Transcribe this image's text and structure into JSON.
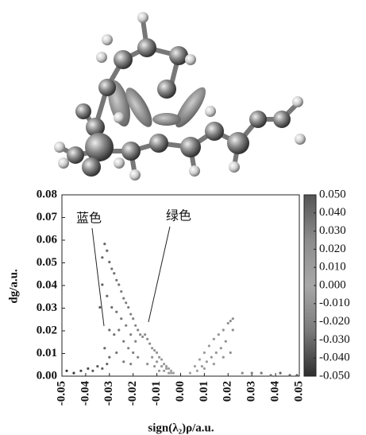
{
  "chart_data": {
    "type": "scatter",
    "xlabel": "sign(λ₂)ρ/a.u.",
    "ylabel": "dg/a.u.",
    "xlim": [
      -0.05,
      0.05
    ],
    "ylim": [
      0,
      0.08
    ],
    "xticks": [
      -0.05,
      -0.04,
      -0.03,
      -0.02,
      -0.01,
      {
        "value": 0,
        "label": "0.00"
      },
      0.01,
      0.02,
      0.03,
      0.04,
      0.05
    ],
    "yticks": [
      {
        "value": 0,
        "label": "0.00"
      },
      0.01,
      0.02,
      0.03,
      0.04,
      0.05,
      0.06,
      0.07,
      0.08
    ],
    "clim": [
      -0.05,
      0.05
    ],
    "cticks": [
      {
        "value": 0.05,
        "label": "0.050"
      },
      {
        "value": 0.04,
        "label": "0.040"
      },
      {
        "value": 0.03,
        "label": "0.030"
      },
      {
        "value": 0.02,
        "label": "0.020"
      },
      {
        "value": 0.01,
        "label": "0.010"
      },
      {
        "value": 0,
        "label": "0.000"
      },
      {
        "value": -0.01,
        "label": "-0.010"
      },
      {
        "value": -0.02,
        "label": "-0.020"
      },
      {
        "value": -0.03,
        "label": "-0.030"
      },
      {
        "value": -0.04,
        "label": "-0.040"
      },
      {
        "value": -0.05,
        "label": "-0.050"
      }
    ],
    "colormap": [
      "#2e2e2e",
      "#7a7a7a",
      "#a8a8a8",
      "#8c8c8c",
      "#555555"
    ],
    "annotations": [
      {
        "text": "蓝色"
      },
      {
        "text": "绿色"
      }
    ],
    "x": [
      -0.048,
      -0.045,
      -0.042,
      -0.039,
      -0.037,
      -0.035,
      -0.033,
      -0.031,
      0.026,
      0.03,
      0.034,
      0.038,
      0.042,
      0.046,
      0.049,
      -0.033,
      -0.032,
      -0.031,
      -0.03,
      -0.029,
      -0.028,
      -0.027,
      -0.026,
      -0.025,
      -0.024,
      -0.023,
      -0.022,
      -0.021,
      -0.02,
      -0.019,
      -0.018,
      -0.017,
      -0.016,
      -0.034,
      -0.033,
      -0.031,
      -0.029,
      -0.027,
      -0.025,
      -0.023,
      -0.021,
      -0.019,
      -0.03,
      -0.028,
      -0.026,
      -0.024,
      -0.022,
      -0.02,
      -0.032,
      -0.03,
      -0.027,
      -0.024,
      -0.021,
      -0.018,
      -0.015,
      -0.014,
      -0.013,
      -0.012,
      -0.011,
      -0.01,
      -0.009,
      -0.008,
      -0.007,
      -0.006,
      -0.005,
      -0.004,
      -0.003,
      -0.012,
      -0.01,
      -0.008,
      -0.006,
      -0.004,
      -0.014,
      -0.011,
      -0.009,
      -0.007,
      -0.005,
      0.004,
      0.006,
      0.008,
      0.01,
      0.012,
      0.014,
      0.016,
      0.018,
      0.02,
      0.021,
      0.022,
      0.022,
      0.019,
      0.017,
      0.015,
      0.013,
      0.011,
      0.009,
      0.007,
      0.021,
      0.018,
      0.014,
      0.01
    ],
    "y": [
      0.002,
      0.001,
      0.002,
      0.003,
      0.002,
      0.004,
      0.003,
      0.005,
      0.001,
      0.001,
      0.001,
      0,
      0.001,
      0,
      0,
      0.052,
      0.058,
      0.055,
      0.05,
      0.047,
      0.045,
      0.042,
      0.04,
      0.037,
      0.034,
      0.032,
      0.03,
      0.027,
      0.025,
      0.022,
      0.02,
      0.018,
      0.017,
      0.03,
      0.04,
      0.035,
      0.03,
      0.028,
      0.025,
      0.022,
      0.018,
      0.015,
      0.02,
      0.018,
      0.02,
      0.015,
      0.012,
      0.01,
      0.012,
      0.008,
      0.01,
      0.006,
      0.005,
      0.008,
      0.018,
      0.016,
      0.014,
      0.012,
      0.011,
      0.01,
      0.008,
      0.007,
      0.005,
      0.004,
      0.003,
      0.002,
      0.001,
      0.008,
      0.006,
      0.004,
      0.003,
      0.001,
      0.005,
      0.004,
      0.002,
      0.002,
      0.001,
      0.001,
      0.004,
      0.007,
      0.01,
      0.013,
      0.016,
      0.018,
      0.02,
      0.023,
      0.024,
      0.025,
      0.02,
      0.015,
      0.012,
      0.01,
      0.008,
      0.006,
      0.004,
      0.002,
      0.01,
      0.008,
      0.005,
      0.003
    ]
  }
}
